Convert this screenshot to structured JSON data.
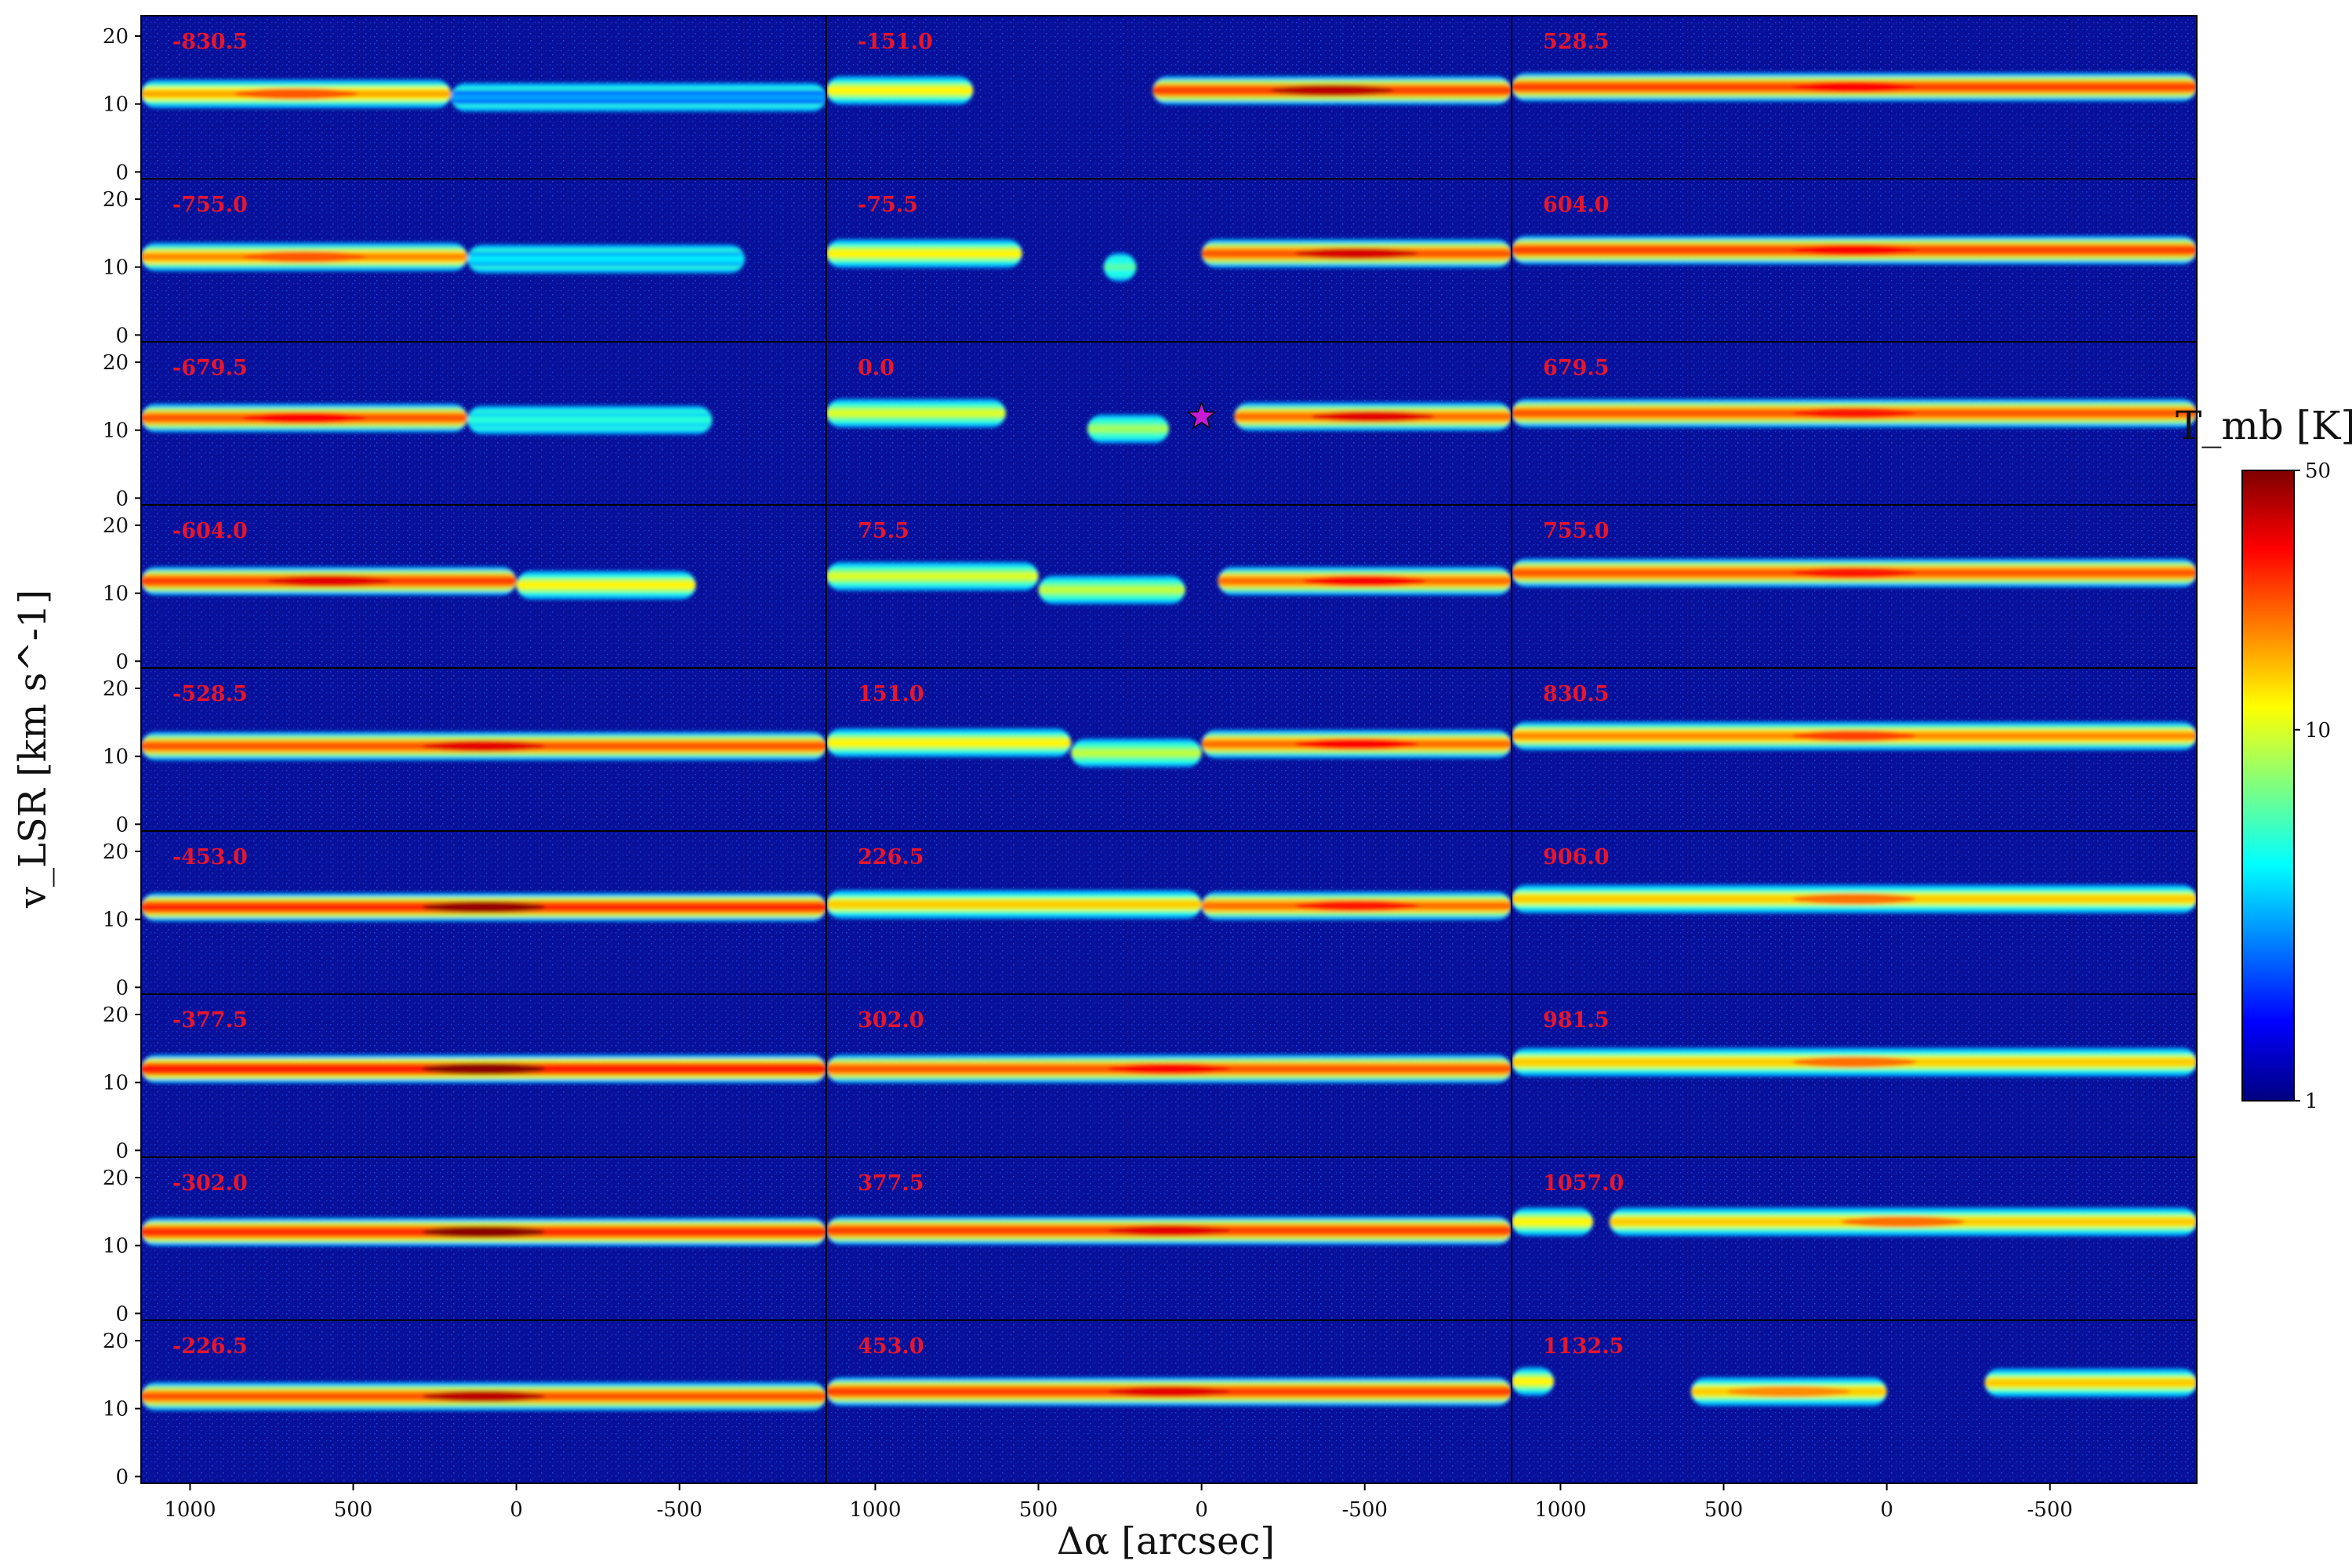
{
  "chart_data": {
    "type": "heatmap",
    "subtype": "position-velocity channel maps",
    "layout": {
      "rows": 9,
      "columns": 3
    },
    "xlabel": "Δα [arcsec]",
    "ylabel": "v_LSR [km s^-1]",
    "xlim": [
      1150,
      -950
    ],
    "ylim": [
      -1,
      23
    ],
    "x_ticks": [
      1000,
      500,
      0,
      -500
    ],
    "x_tick_labels": [
      "1000",
      "500",
      "0",
      "-500"
    ],
    "y_ticks": [
      0,
      10,
      20
    ],
    "y_tick_labels": [
      "0",
      "10",
      "20"
    ],
    "colorbar": {
      "label": "T_mb [K]",
      "scale": "log",
      "range": [
        1,
        50
      ],
      "tick_labels": [
        "1",
        "10",
        "50"
      ],
      "colormap": "jet"
    },
    "marker": {
      "symbol": "star",
      "color": "#c71bd6",
      "panel_offset": "0.0",
      "x": 0,
      "y": 12
    },
    "panels": [
      {
        "offset": "-830.5",
        "column": 0,
        "row": 0,
        "peak": 22,
        "segments": [
          [
            1150,
            200,
            11.5,
            16
          ],
          [
            200,
            -950,
            11.0,
            3
          ]
        ]
      },
      {
        "offset": "-755.0",
        "column": 0,
        "row": 1,
        "peak": 22,
        "segments": [
          [
            1150,
            150,
            11.5,
            18
          ],
          [
            150,
            -700,
            11.2,
            4
          ]
        ]
      },
      {
        "offset": "-679.5",
        "column": 0,
        "row": 2,
        "peak": 30,
        "segments": [
          [
            1150,
            150,
            11.8,
            22
          ],
          [
            150,
            -600,
            11.5,
            5
          ]
        ]
      },
      {
        "offset": "-604.0",
        "column": 0,
        "row": 3,
        "peak": 34,
        "segments": [
          [
            1150,
            0,
            11.8,
            24
          ],
          [
            0,
            -550,
            11.2,
            12
          ]
        ]
      },
      {
        "offset": "-528.5",
        "column": 0,
        "row": 4,
        "peak": 34,
        "segments": [
          [
            1150,
            -950,
            11.5,
            22
          ]
        ]
      },
      {
        "offset": "-453.0",
        "column": 0,
        "row": 5,
        "peak": 46,
        "segments": [
          [
            1150,
            -950,
            11.8,
            26
          ]
        ]
      },
      {
        "offset": "-377.5",
        "column": 0,
        "row": 6,
        "peak": 48,
        "segments": [
          [
            1150,
            -950,
            12.0,
            28
          ]
        ]
      },
      {
        "offset": "-302.0",
        "column": 0,
        "row": 7,
        "peak": 48,
        "segments": [
          [
            1150,
            -950,
            12.0,
            26
          ]
        ]
      },
      {
        "offset": "-226.5",
        "column": 0,
        "row": 8,
        "peak": 40,
        "segments": [
          [
            1150,
            -950,
            11.8,
            22
          ]
        ]
      },
      {
        "offset": "-151.0",
        "column": 1,
        "row": 0,
        "peak": 40,
        "segments": [
          [
            1150,
            700,
            12.0,
            12
          ],
          [
            150,
            -950,
            12.0,
            24
          ]
        ]
      },
      {
        "offset": "-75.5",
        "column": 1,
        "row": 1,
        "peak": 36,
        "segments": [
          [
            1150,
            550,
            12.0,
            12
          ],
          [
            300,
            200,
            10.0,
            6
          ],
          [
            0,
            -950,
            12.0,
            22
          ]
        ]
      },
      {
        "offset": "0.0",
        "column": 1,
        "row": 2,
        "peak": 34,
        "segments": [
          [
            1150,
            600,
            12.5,
            10
          ],
          [
            350,
            100,
            10.2,
            8
          ],
          [
            -100,
            -950,
            12.0,
            20
          ]
        ]
      },
      {
        "offset": "75.5",
        "column": 1,
        "row": 3,
        "peak": 30,
        "segments": [
          [
            1150,
            500,
            12.5,
            10
          ],
          [
            500,
            50,
            10.5,
            9
          ],
          [
            -50,
            -950,
            11.8,
            20
          ]
        ]
      },
      {
        "offset": "151.0",
        "column": 1,
        "row": 4,
        "peak": 30,
        "segments": [
          [
            1150,
            400,
            12.0,
            12
          ],
          [
            400,
            0,
            10.5,
            9
          ],
          [
            0,
            -950,
            11.8,
            20
          ]
        ]
      },
      {
        "offset": "226.5",
        "column": 1,
        "row": 5,
        "peak": 28,
        "segments": [
          [
            1150,
            0,
            12.2,
            14
          ],
          [
            0,
            -950,
            12.0,
            20
          ]
        ]
      },
      {
        "offset": "302.0",
        "column": 1,
        "row": 6,
        "peak": 30,
        "segments": [
          [
            1150,
            -950,
            12.0,
            22
          ]
        ]
      },
      {
        "offset": "377.5",
        "column": 1,
        "row": 7,
        "peak": 34,
        "segments": [
          [
            1150,
            -950,
            12.2,
            24
          ]
        ]
      },
      {
        "offset": "453.0",
        "column": 1,
        "row": 8,
        "peak": 34,
        "segments": [
          [
            1150,
            -950,
            12.5,
            24
          ]
        ]
      },
      {
        "offset": "528.5",
        "column": 2,
        "row": 0,
        "peak": 30,
        "segments": [
          [
            1150,
            -950,
            12.5,
            24
          ]
        ]
      },
      {
        "offset": "604.0",
        "column": 2,
        "row": 1,
        "peak": 30,
        "segments": [
          [
            1150,
            -950,
            12.5,
            24
          ]
        ]
      },
      {
        "offset": "679.5",
        "column": 2,
        "row": 2,
        "peak": 28,
        "segments": [
          [
            1150,
            -950,
            12.5,
            22
          ]
        ]
      },
      {
        "offset": "755.0",
        "column": 2,
        "row": 3,
        "peak": 28,
        "segments": [
          [
            1150,
            -950,
            13.0,
            22
          ]
        ]
      },
      {
        "offset": "830.5",
        "column": 2,
        "row": 4,
        "peak": 24,
        "segments": [
          [
            1150,
            -950,
            13.0,
            18
          ]
        ]
      },
      {
        "offset": "906.0",
        "column": 2,
        "row": 5,
        "peak": 20,
        "segments": [
          [
            1150,
            -950,
            13.0,
            14
          ]
        ]
      },
      {
        "offset": "981.5",
        "column": 2,
        "row": 6,
        "peak": 20,
        "segments": [
          [
            1150,
            -950,
            13.0,
            14
          ]
        ]
      },
      {
        "offset": "1057.0",
        "column": 2,
        "row": 7,
        "peak": 20,
        "segments": [
          [
            1150,
            900,
            13.5,
            12
          ],
          [
            850,
            -950,
            13.5,
            14
          ]
        ]
      },
      {
        "offset": "1132.5",
        "column": 2,
        "row": 8,
        "peak": 18,
        "segments": [
          [
            1150,
            1020,
            14.0,
            12
          ],
          [
            600,
            0,
            12.5,
            14
          ],
          [
            -300,
            -950,
            13.8,
            14
          ]
        ]
      }
    ]
  }
}
